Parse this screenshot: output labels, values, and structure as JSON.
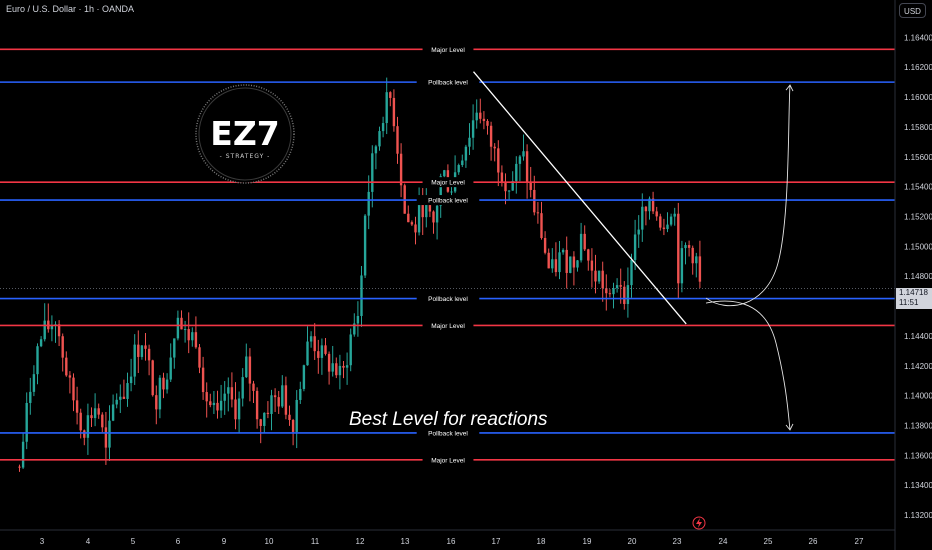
{
  "header": {
    "symbol": "Euro / U.S. Dollar · 1h · OANDA",
    "currency_button": "USD"
  },
  "last_price": {
    "price": "1.14718",
    "countdown": "11:51"
  },
  "annotation": {
    "text": "Best Level for reactions"
  },
  "logo": {
    "main": "EZ7",
    "sub": "- STRATEGY -"
  },
  "colors": {
    "major": "#f23645",
    "pullback": "#2962ff",
    "up": "#26a69a",
    "down": "#ef5350",
    "axis_text": "#d1d4dc",
    "background": "#000000"
  },
  "chart_data": {
    "type": "candlestick",
    "title": "Euro / U.S. Dollar · 1h · OANDA",
    "ylim": [
      1.131,
      1.1665
    ],
    "y_ticks": [
      "1.16400",
      "1.16200",
      "1.16000",
      "1.15800",
      "1.15600",
      "1.15400",
      "1.15200",
      "1.15000",
      "1.14800",
      "1.14600",
      "1.14400",
      "1.14200",
      "1.14000",
      "1.13800",
      "1.13600",
      "1.13400",
      "1.13200"
    ],
    "x_ticks": [
      "3",
      "4",
      "5",
      "6",
      "9",
      "10",
      "11",
      "12",
      "13",
      "16",
      "17",
      "18",
      "19",
      "20",
      "23",
      "24",
      "25",
      "26",
      "27"
    ],
    "levels": [
      {
        "label": "Major Level",
        "kind": "major",
        "price": 1.1632
      },
      {
        "label": "Pollback level",
        "kind": "pullback",
        "price": 1.161
      },
      {
        "label": "Major Level",
        "kind": "major",
        "price": 1.1543
      },
      {
        "label": "Pollback level",
        "kind": "pullback",
        "price": 1.1531
      },
      {
        "label": "Pollback level",
        "kind": "pullback",
        "price": 1.1465
      },
      {
        "label": "Major Level",
        "kind": "major",
        "price": 1.1447
      },
      {
        "label": "Pollback level",
        "kind": "pullback",
        "price": 1.1375
      },
      {
        "label": "Major Level",
        "kind": "major",
        "price": 1.1357
      }
    ],
    "trendline": {
      "from": {
        "x": "16.5",
        "price": 1.1617
      },
      "to": {
        "x": "23.2",
        "price": 1.1448
      }
    },
    "projections": [
      {
        "direction": "up",
        "start_price": 1.1462,
        "end_price": 1.1608
      },
      {
        "direction": "down",
        "start_price": 1.1462,
        "end_price": 1.1377
      }
    ],
    "path": [
      [
        "2.5",
        1.1352
      ],
      [
        "2.8",
        1.142
      ],
      [
        "3.0",
        1.144
      ],
      [
        "3.3",
        1.1452
      ],
      [
        "3.6",
        1.1405
      ],
      [
        "3.9",
        1.1378
      ],
      [
        "4.2",
        1.1395
      ],
      [
        "4.4",
        1.136
      ],
      [
        "4.6",
        1.14
      ],
      [
        "4.8",
        1.1402
      ],
      [
        "5.0",
        1.1425
      ],
      [
        "5.2",
        1.1438
      ],
      [
        "5.5",
        1.1398
      ],
      [
        "5.8",
        1.1422
      ],
      [
        "6.0",
        1.146
      ],
      [
        "6.1",
        1.144
      ],
      [
        "6.4",
        1.144
      ],
      [
        "6.6",
        1.14
      ],
      [
        "6.9",
        1.138
      ],
      [
        "9.0",
        1.1402
      ],
      [
        "9.3",
        1.139
      ],
      [
        "9.5",
        1.142
      ],
      [
        "9.8",
        1.1382
      ],
      [
        "10.0",
        1.1395
      ],
      [
        "10.3",
        1.14
      ],
      [
        "10.5",
        1.138
      ],
      [
        "10.7",
        1.1415
      ],
      [
        "10.9",
        1.144
      ],
      [
        "11.2",
        1.1423
      ],
      [
        "11.4",
        1.142
      ],
      [
        "11.6",
        1.141
      ],
      [
        "11.8",
        1.144
      ],
      [
        "12.0",
        1.146
      ],
      [
        "12.1",
        1.152
      ],
      [
        "12.3",
        1.156
      ],
      [
        "12.5",
        1.159
      ],
      [
        "12.7",
        1.16
      ],
      [
        "12.9",
        1.155
      ],
      [
        "13.0",
        1.152
      ],
      [
        "13.2",
        1.151
      ],
      [
        "13.4",
        1.153
      ],
      [
        "13.6",
        1.151
      ],
      [
        "13.8",
        1.155
      ],
      [
        "16.0",
        1.154
      ],
      [
        "16.2",
        1.156
      ],
      [
        "16.4",
        1.1575
      ],
      [
        "16.6",
        1.1595
      ],
      [
        "16.8",
        1.1575
      ],
      [
        "17.0",
        1.156
      ],
      [
        "17.3",
        1.154
      ],
      [
        "17.6",
        1.156
      ],
      [
        "17.8",
        1.153
      ],
      [
        "18.0",
        1.151
      ],
      [
        "18.2",
        1.148
      ],
      [
        "18.4",
        1.1492
      ],
      [
        "18.7",
        1.149
      ],
      [
        "18.9",
        1.151
      ],
      [
        "19.1",
        1.148
      ],
      [
        "19.3",
        1.148
      ],
      [
        "19.5",
        1.146
      ],
      [
        "19.7",
        1.148
      ],
      [
        "19.9",
        1.1465
      ],
      [
        "20.0",
        1.15
      ],
      [
        "20.2",
        1.152
      ],
      [
        "20.5",
        1.1525
      ],
      [
        "20.7",
        1.1515
      ],
      [
        "20.9",
        1.153
      ],
      [
        "21.1",
        1.151
      ],
      [
        "23.0",
        1.148
      ],
      [
        "23.2",
        1.15
      ],
      [
        "23.4",
        1.1495
      ],
      [
        "23.5",
        1.1472
      ]
    ]
  }
}
